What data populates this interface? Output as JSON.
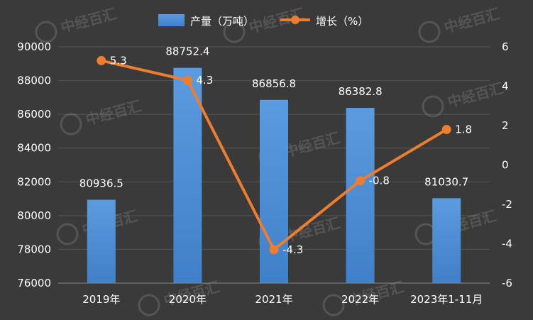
{
  "chart_data": {
    "type": "bar",
    "categories": [
      "2019年",
      "2020年",
      "2021年",
      "2022年",
      "2023年1-11月"
    ],
    "series": [
      {
        "name": "产量（万吨）",
        "type": "bar",
        "axis": "left",
        "values": [
          80936.5,
          88752.4,
          86856.8,
          86382.8,
          81030.7
        ],
        "labels": [
          "80936.5",
          "88752.4",
          "86856.8",
          "86382.8",
          "81030.7"
        ],
        "color": "#4a8fd8"
      },
      {
        "name": "增长（%）",
        "type": "line",
        "axis": "right",
        "values": [
          5.3,
          4.3,
          -4.3,
          -0.8,
          1.8
        ],
        "labels": [
          "5.3",
          "4.3",
          "-4.3",
          "-0.8",
          "1.8"
        ],
        "color": "#ed7d31"
      }
    ],
    "y_left": {
      "range": [
        76000,
        90000
      ],
      "ticks": [
        "76000",
        "78000",
        "80000",
        "82000",
        "84000",
        "86000",
        "88000",
        "90000"
      ]
    },
    "y_right": {
      "range": [
        -6,
        6
      ],
      "ticks": [
        "-6",
        "-4",
        "-2",
        "0",
        "2",
        "4",
        "6"
      ]
    },
    "legend_position": "top",
    "grid": true,
    "watermark": "中经百汇"
  }
}
